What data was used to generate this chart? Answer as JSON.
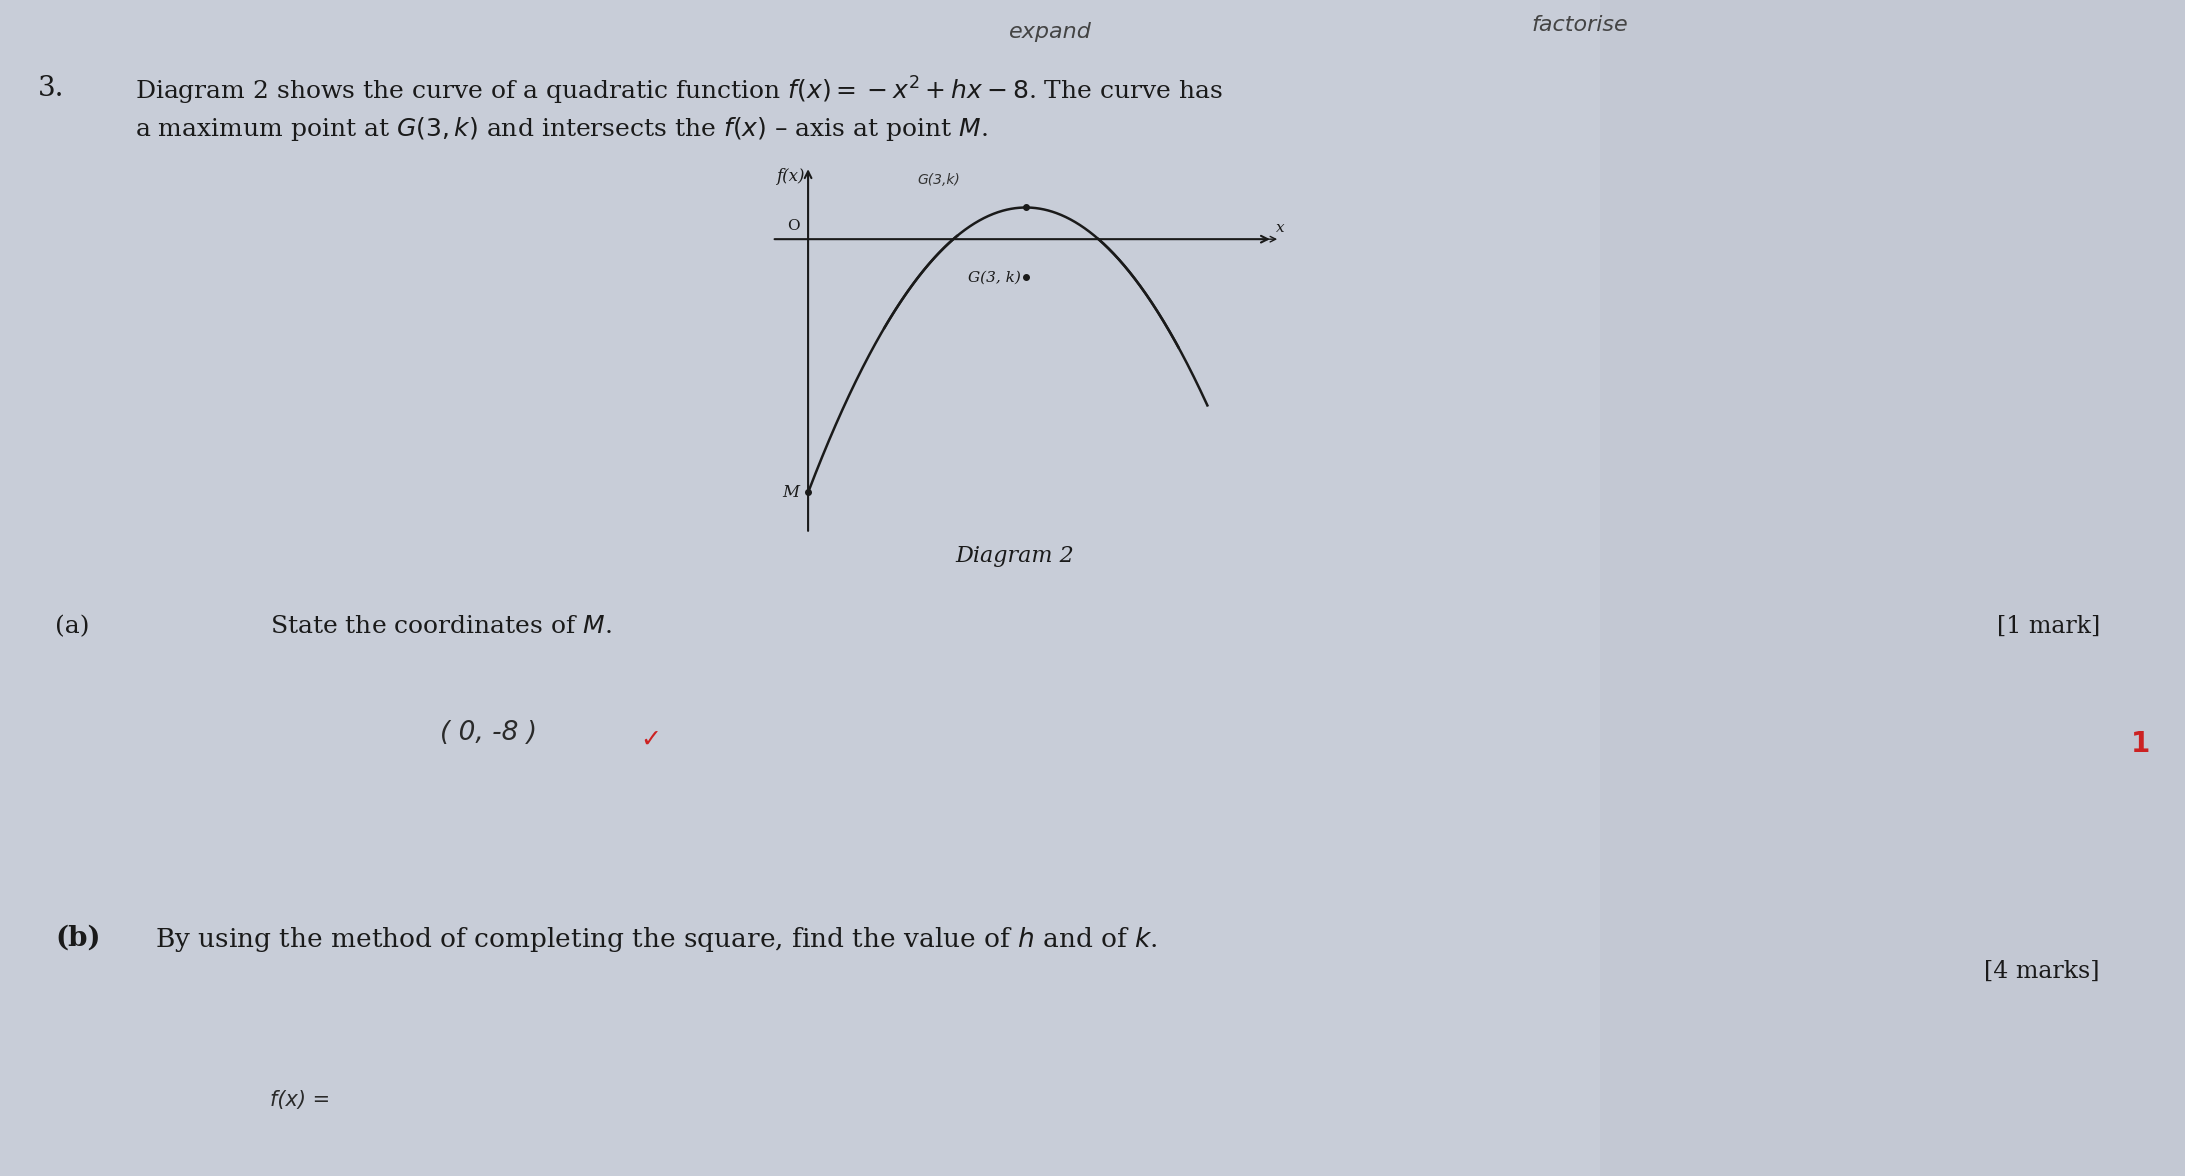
{
  "background_color": "#c8cdd8",
  "fig_width": 21.85,
  "fig_height": 11.76,
  "question_number": "3.",
  "question_text_line1": "Diagram 2 shows the curve of a quadratic function $f(x) = -x^2 + hx - 8$. The curve has",
  "question_text_line2": "a maximum point at $G(3, k)$ and intersects the $f(x)$ – axis at point $M$.",
  "handwritten_top_left": "expand",
  "handwritten_top_right": "factorise",
  "diagram_label": "Diagram 2",
  "fx_label": "f(x)",
  "x_label": "x",
  "origin_label": "O",
  "G_label_printed": "G(3, k)",
  "G_label_handwritten": "G(3,k)",
  "M_label": "M",
  "part_a_label": "(a)",
  "part_a_text": "State the coordinates of $M$.",
  "part_a_mark": "[1 mark]",
  "part_b_label": "(b)",
  "part_b_text": "By using the method of completing the square, find the value of $h$ and of $k$.",
  "part_b_mark": "[4 marks]",
  "curve_color": "#1a1a1a",
  "axis_color": "#1a1a1a",
  "text_color": "#1a1a1a",
  "answer_color": "#2a2a2a",
  "red_color": "#cc2222",
  "font_size_q": 18,
  "font_size_diagram": 15,
  "font_size_marks": 17,
  "font_size_handwritten": 16,
  "font_size_answer": 17,
  "font_size_red": 20
}
